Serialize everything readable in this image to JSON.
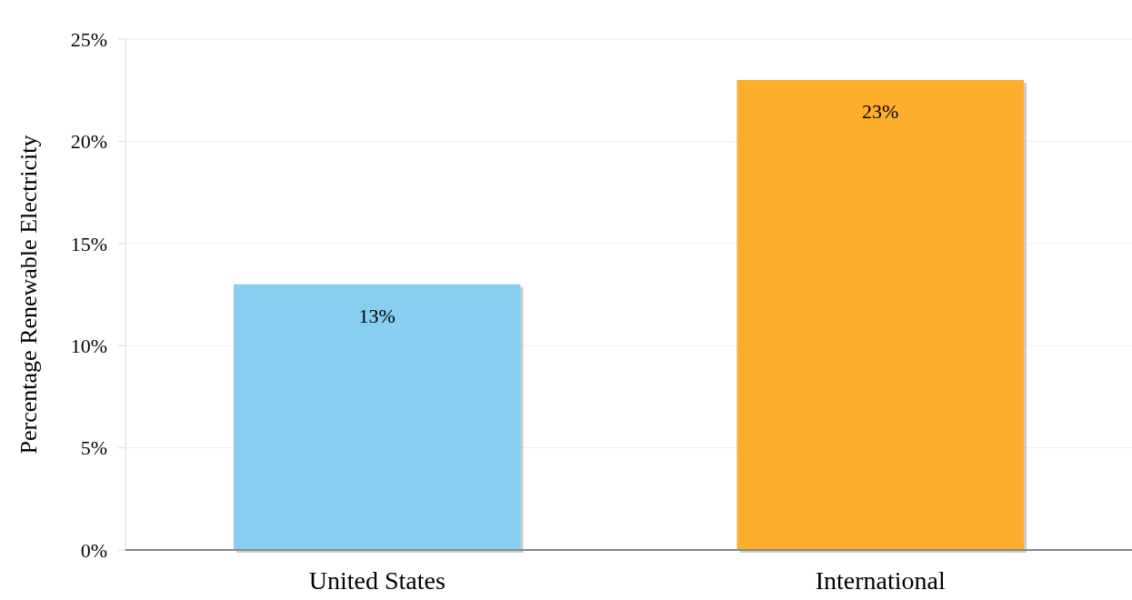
{
  "chart_data": {
    "type": "bar",
    "ylabel": "Percentage Renewable Electricity",
    "categories": [
      "United States",
      "International"
    ],
    "values": [
      13,
      23
    ],
    "colors": [
      "#87cef0",
      "#fdae2d"
    ],
    "value_labels": [
      "13%",
      "23%"
    ],
    "ylim": [
      0,
      25
    ],
    "yticks": [
      {
        "value": 0,
        "label": "0%"
      },
      {
        "value": 5,
        "label": "5%"
      },
      {
        "value": 10,
        "label": "10%"
      },
      {
        "value": 15,
        "label": "15%"
      },
      {
        "value": 20,
        "label": "20%"
      },
      {
        "value": 25,
        "label": "25%"
      }
    ],
    "grid": "y"
  }
}
